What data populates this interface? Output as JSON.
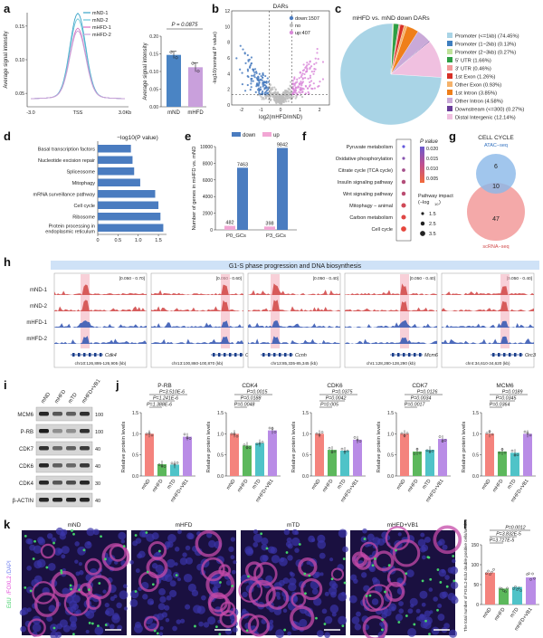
{
  "panel_letters": [
    "a",
    "b",
    "c",
    "d",
    "e",
    "f",
    "g",
    "h",
    "i",
    "j",
    "k",
    "l"
  ],
  "chart_data": [
    {
      "id": "a_profile",
      "type": "line",
      "ylabel": "Average signal intensity",
      "xticks": [
        "-3.0",
        "TSS",
        "3.0Kb"
      ],
      "yticks": [
        "0.05",
        "0.10",
        "0.15"
      ],
      "ylim": [
        0.03,
        0.17
      ],
      "legend": [
        "mND-1",
        "mND-2",
        "mHFD-1",
        "mHFD-2"
      ],
      "colors": [
        "#3aa3c8",
        "#6cc4d8",
        "#d86fc0",
        "#c7a3d8"
      ],
      "peaks": [
        0.165,
        0.157,
        0.143,
        0.139
      ]
    },
    {
      "id": "a_bar",
      "type": "bar",
      "categories": [
        "mND",
        "mHFD"
      ],
      "values": [
        0.147,
        0.112
      ],
      "errors": [
        0.01,
        0.013
      ],
      "points": [
        [
          0.155,
          0.139
        ],
        [
          0.123,
          0.101
        ]
      ],
      "colors": [
        "#4a84c4",
        "#c9a0dc"
      ],
      "ylabel": "Average signal intensity",
      "yticks": [
        "0.00",
        "0.05",
        "0.10",
        "0.15",
        "0.20"
      ],
      "ylim": [
        0,
        0.2
      ],
      "annotation": "P = 0.0875"
    },
    {
      "id": "b_volcano",
      "type": "scatter",
      "title": "DARs",
      "xlabel": "log2(mHFD/mND)",
      "ylabel": "-log10(nominal P value)",
      "xticks": [
        "-2",
        "-1",
        "0",
        "1",
        "2"
      ],
      "yticks": [
        "0",
        "2",
        "4",
        "6",
        "8",
        "10",
        "12"
      ],
      "xlim": [
        -2.5,
        2.5
      ],
      "ylim": [
        0,
        12
      ],
      "legend": [
        {
          "label": "down:1507",
          "color": "#4a7cc0"
        },
        {
          "label": "no",
          "color": "#bdbdbd"
        },
        {
          "label": "up:407",
          "color": "#d98ad9"
        }
      ]
    },
    {
      "id": "c_pie",
      "type": "pie",
      "title": "mHFD vs. mND down DARs",
      "labels": [
        "Promoter (<=1kb) (74.45%)",
        "Promoter (1~2kb) (0.13%)",
        "Promoter (2~3kb) (0.27%)",
        "5' UTR (1.66%)",
        "3' UTR (0.46%)",
        "1st Exon (1.26%)",
        "Other Exon (0.93%)",
        "1st Intron (3.85%)",
        "Other Intron (4.58%)",
        "Downstream (<=300) (0.27%)",
        "Distal Intergenic (12.14%)"
      ],
      "values": [
        74.45,
        0.13,
        0.27,
        1.66,
        0.46,
        1.26,
        0.93,
        3.85,
        4.58,
        0.27,
        12.14
      ],
      "colors": [
        "#a9d4e6",
        "#3f7fbf",
        "#bfe39a",
        "#2e9e44",
        "#f39a9a",
        "#d73027",
        "#f5b26b",
        "#ef7f1a",
        "#c9a9d8",
        "#6a3d9a",
        "#f0c0e0"
      ]
    },
    {
      "id": "d_bar",
      "type": "bar",
      "orientation": "horizontal",
      "title": "−log10(P value)",
      "categories": [
        "Basal transcription factors",
        "Nucleotide excision repair",
        "Spliceosome",
        "Mitophagy",
        "mRNA surveillance pathway",
        "Cell cycle",
        "Ribosome",
        "Protein processing in endoplasmic reticulum"
      ],
      "values": [
        0.82,
        0.86,
        0.9,
        1.05,
        1.42,
        1.5,
        1.55,
        1.62
      ],
      "xticks": [
        "0",
        "0.5",
        "1.0",
        "1.5"
      ],
      "xlim": [
        0,
        1.7
      ],
      "color": "#4a7cc0"
    },
    {
      "id": "e_bar",
      "type": "bar",
      "ylabel": "Number of genes in mHFD vs. mND",
      "categories": [
        "P0_GCs",
        "P3_GCs"
      ],
      "series": [
        {
          "name": "down",
          "values": [
            7463,
            9842
          ],
          "color": "#4a7cc0"
        },
        {
          "name": "up",
          "values": [
            482,
            398
          ],
          "color": "#f2a6d4"
        }
      ],
      "yticks": [
        "0",
        "2000",
        "4000",
        "6000",
        "8000",
        "10000"
      ],
      "ylim": [
        0,
        10000
      ]
    },
    {
      "id": "f_dot",
      "type": "scatter",
      "categories": [
        "Pyruvate metabolism",
        "Oxidative phosphorylation",
        "Citrate cycle (TCA cycle)",
        "Insulin signaling pathway",
        "Wnt signaling pathway",
        "Mitophagy − animal",
        "Carbon metabolism",
        "Cell cycle"
      ],
      "pvalues": [
        0.021,
        0.016,
        0.012,
        0.01,
        0.009,
        0.006,
        0.004,
        0.003
      ],
      "impact": [
        1.5,
        1.5,
        2.0,
        2.5,
        2.5,
        3.0,
        3.0,
        3.5
      ],
      "colorbar_title": "P value",
      "colorbar_ticks": [
        "0.020",
        "0.015",
        "0.010",
        "0.005"
      ],
      "size_title": "Pathway impact (−log10)",
      "size_ticks": [
        "1.5",
        "2.5",
        "3.5"
      ]
    },
    {
      "id": "g_venn",
      "type": "venn",
      "title": "CELL CYCLE",
      "sets": [
        {
          "label": "ATAC−seq",
          "color": "#8ab8e8"
        },
        {
          "label": "scRNA−seq",
          "color": "#f29a9a"
        }
      ],
      "values": {
        "only_a": "6",
        "both": "10",
        "only_b": "47"
      }
    },
    {
      "id": "h_tracks",
      "type": "tracks",
      "title": "G1-S phase progression and DNA biosynthesis",
      "samples": [
        "mND-1",
        "mND-2",
        "mHFD-1",
        "mHFD-2"
      ],
      "sample_colors": [
        "#d34d4d",
        "#d34d4d",
        "#3a5bb5",
        "#3a5bb5"
      ],
      "loci": [
        {
          "gene": "Cdk4",
          "range": "[0.050 - 0.70]",
          "coord": "chr10:126,895-126,905 (kb)"
        },
        {
          "gene": "Cdk7",
          "range": "[0.050 - 0.60]",
          "coord": "chr13:100,860-100,870 (kb)"
        },
        {
          "gene": "Ccnh",
          "range": "[0.050 - 0.40]",
          "coord": "chr13:85,335-85,345 (kb)"
        },
        {
          "gene": "Mcm6",
          "range": "[0.050 - 0.40]",
          "coord": "chr1:128,280-128,290 (kb)"
        },
        {
          "gene": "Orc3",
          "range": "[0.050 - 0.40]",
          "coord": "chr4:34,610-34,620 (kb)"
        }
      ]
    },
    {
      "id": "i_western",
      "type": "western",
      "lanes": [
        "mND",
        "mHFD",
        "mTD",
        "mHFD+VB1"
      ],
      "proteins": [
        "MCM6",
        "P-RB",
        "CDK7",
        "CDK6",
        "CDK4",
        "β-ACTIN"
      ],
      "kda": [
        "100",
        "100",
        "40",
        "40",
        "30",
        "40"
      ]
    },
    {
      "id": "j_bars",
      "type": "bar",
      "ylabel": "Relative protein levels",
      "categories": [
        "mND",
        "mHFD",
        "mTD",
        "mHFD+VB1"
      ],
      "colors": [
        "#f4837d",
        "#5cb85c",
        "#4fc3c8",
        "#b98ce6"
      ],
      "yticks": [
        "0.0",
        "0.5",
        "1.0",
        "1.5"
      ],
      "ylim": [
        0,
        1.5
      ],
      "panels": [
        {
          "title": "P-RB",
          "values": [
            1.0,
            0.28,
            0.27,
            0.93
          ],
          "pvals": [
            "P=3.510E-6",
            "P=1.241E-6",
            "P=1.388E-6"
          ]
        },
        {
          "title": "CDK4",
          "values": [
            1.0,
            0.72,
            0.78,
            1.08
          ],
          "pvals": [
            "P=0.0015",
            "P=0.0188",
            "P=0.0048"
          ]
        },
        {
          "title": "CDK6",
          "values": [
            1.0,
            0.62,
            0.6,
            0.86
          ],
          "pvals": [
            "P=0.0375",
            "P=0.0042",
            "P=0.005"
          ]
        },
        {
          "title": "CDK7",
          "values": [
            1.0,
            0.58,
            0.62,
            0.88
          ],
          "pvals": [
            "P=0.0126",
            "P=0.0034",
            "P=0.0017"
          ]
        },
        {
          "title": "MCM6",
          "values": [
            1.0,
            0.58,
            0.55,
            1.0
          ],
          "pvals": [
            "P=0.0189",
            "P=0.0345",
            "P=0.0364"
          ]
        }
      ]
    },
    {
      "id": "k_images",
      "type": "image_panels",
      "labels": [
        "mND",
        "mHFD",
        "mTD",
        "mHFD+VB1"
      ],
      "stain_label": [
        "EdU",
        "/FOXL2",
        "/DAPI"
      ],
      "stain_colors": [
        "#44d16a",
        "#e14ad9",
        "#6c7cf0"
      ]
    },
    {
      "id": "l_bar",
      "type": "bar",
      "ylabel": "The total number of FOXL2-EdU double positive cells/section",
      "categories": [
        "mND",
        "mHFD",
        "mTD",
        "mHFD+VB1"
      ],
      "values": [
        80,
        40,
        44,
        68
      ],
      "colors": [
        "#f4837d",
        "#5cb85c",
        "#4fc3c8",
        "#b98ce6"
      ],
      "yticks": [
        "0",
        "50",
        "100",
        "150"
      ],
      "ylim": [
        0,
        150
      ],
      "pvals": [
        "P=0.0012",
        "P=3.832E-5",
        "P=3.727E-5"
      ]
    }
  ]
}
